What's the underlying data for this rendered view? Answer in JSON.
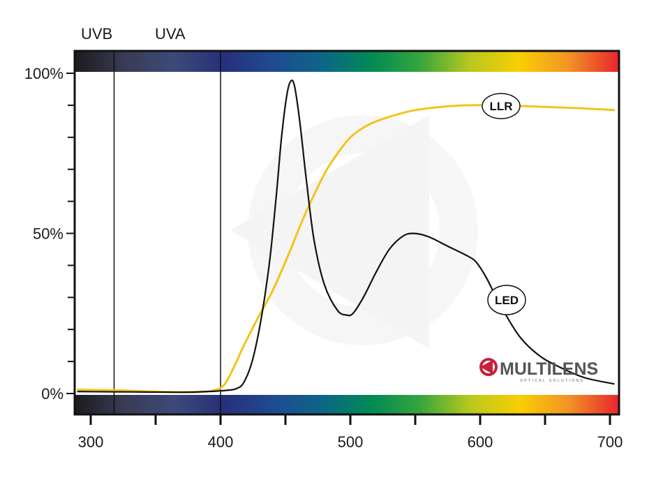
{
  "chart_data": {
    "type": "line",
    "xlim": [
      290,
      705
    ],
    "ylim": [
      0,
      100
    ],
    "x_ticks": [
      300,
      400,
      500,
      600,
      700
    ],
    "x_minor_ticks": [
      350,
      450,
      550,
      650
    ],
    "y_tick_labels": [
      {
        "value": 0,
        "label": "0%"
      },
      {
        "value": 50,
        "label": "50%"
      },
      {
        "value": 100,
        "label": "100%"
      }
    ],
    "y_minor_ticks": [
      10,
      20,
      30,
      40,
      60,
      70,
      80,
      90
    ],
    "regions": [
      {
        "label": "UVB",
        "boundary": 318
      },
      {
        "label": "UVA",
        "boundary": 400
      }
    ],
    "spectrum_colors": [
      "#1c1c1e",
      "#3a3b55",
      "#3c4a78",
      "#27307a",
      "#1f4a92",
      "#0c6688",
      "#018a55",
      "#37a63c",
      "#b8c81e",
      "#f9cf02",
      "#f29324",
      "#e8262e"
    ],
    "series": [
      {
        "name": "LLR",
        "color": "#f2c418",
        "points": [
          [
            290,
            1.2
          ],
          [
            320,
            1.0
          ],
          [
            350,
            0.6
          ],
          [
            380,
            0.4
          ],
          [
            395,
            1.0
          ],
          [
            403,
            2.8
          ],
          [
            410,
            8
          ],
          [
            418,
            15
          ],
          [
            428,
            23
          ],
          [
            440,
            32
          ],
          [
            452,
            43
          ],
          [
            462,
            53
          ],
          [
            472,
            62
          ],
          [
            482,
            70
          ],
          [
            492,
            76
          ],
          [
            500,
            80
          ],
          [
            510,
            83
          ],
          [
            520,
            85
          ],
          [
            535,
            87
          ],
          [
            550,
            88.5
          ],
          [
            570,
            89.5
          ],
          [
            590,
            90
          ],
          [
            610,
            90
          ],
          [
            630,
            89.8
          ],
          [
            650,
            89.5
          ],
          [
            670,
            89.2
          ],
          [
            690,
            88.8
          ],
          [
            703,
            88.5
          ]
        ]
      },
      {
        "name": "LED",
        "color": "#111111",
        "points": [
          [
            290,
            0.6
          ],
          [
            330,
            0.5
          ],
          [
            370,
            0.4
          ],
          [
            390,
            0.6
          ],
          [
            405,
            1.0
          ],
          [
            412,
            1.5
          ],
          [
            418,
            3.5
          ],
          [
            425,
            11
          ],
          [
            432,
            25
          ],
          [
            438,
            42
          ],
          [
            443,
            62
          ],
          [
            447,
            80
          ],
          [
            451,
            93
          ],
          [
            454,
            97.5
          ],
          [
            457,
            96
          ],
          [
            461,
            85
          ],
          [
            466,
            67
          ],
          [
            472,
            48
          ],
          [
            480,
            34
          ],
          [
            490,
            26
          ],
          [
            497,
            24.5
          ],
          [
            502,
            25
          ],
          [
            510,
            30
          ],
          [
            520,
            38
          ],
          [
            530,
            45
          ],
          [
            540,
            49
          ],
          [
            548,
            50
          ],
          [
            560,
            49
          ],
          [
            575,
            46
          ],
          [
            590,
            43
          ],
          [
            597,
            41
          ],
          [
            605,
            36
          ],
          [
            615,
            28
          ],
          [
            630,
            18
          ],
          [
            645,
            12
          ],
          [
            660,
            8.5
          ],
          [
            680,
            5
          ],
          [
            703,
            3
          ]
        ]
      }
    ]
  },
  "labels": {
    "llr": "LLR",
    "led": "LED",
    "uvb": "UVB",
    "uva": "UVA"
  },
  "logo": {
    "name": "MULTILENS",
    "tagline": "OPTICAL SOLUTIONS",
    "color": "#555555",
    "accent_color": "#c8203c"
  }
}
